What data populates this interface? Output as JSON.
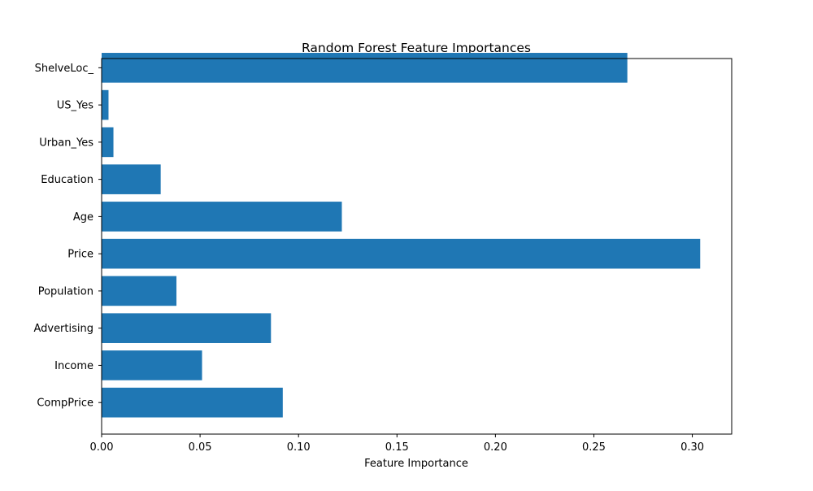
{
  "chart_data": {
    "type": "bar",
    "orientation": "horizontal",
    "title": "Random Forest Feature Importances",
    "xlabel": "Feature Importance",
    "ylabel": "",
    "categories": [
      "CompPrice",
      "Income",
      "Advertising",
      "Population",
      "Price",
      "Age",
      "Education",
      "Urban_Yes",
      "US_Yes",
      "ShelveLoc_"
    ],
    "values": [
      0.092,
      0.051,
      0.086,
      0.038,
      0.304,
      0.122,
      0.03,
      0.006,
      0.0035,
      0.267
    ],
    "xlim": [
      0.0,
      0.32
    ],
    "xticks": [
      0.0,
      0.05,
      0.1,
      0.15,
      0.2,
      0.25,
      0.3
    ],
    "xtick_labels": [
      "0.00",
      "0.05",
      "0.10",
      "0.15",
      "0.20",
      "0.25",
      "0.30"
    ],
    "bar_color": "#1f77b4",
    "grid": false,
    "legend": "none"
  }
}
